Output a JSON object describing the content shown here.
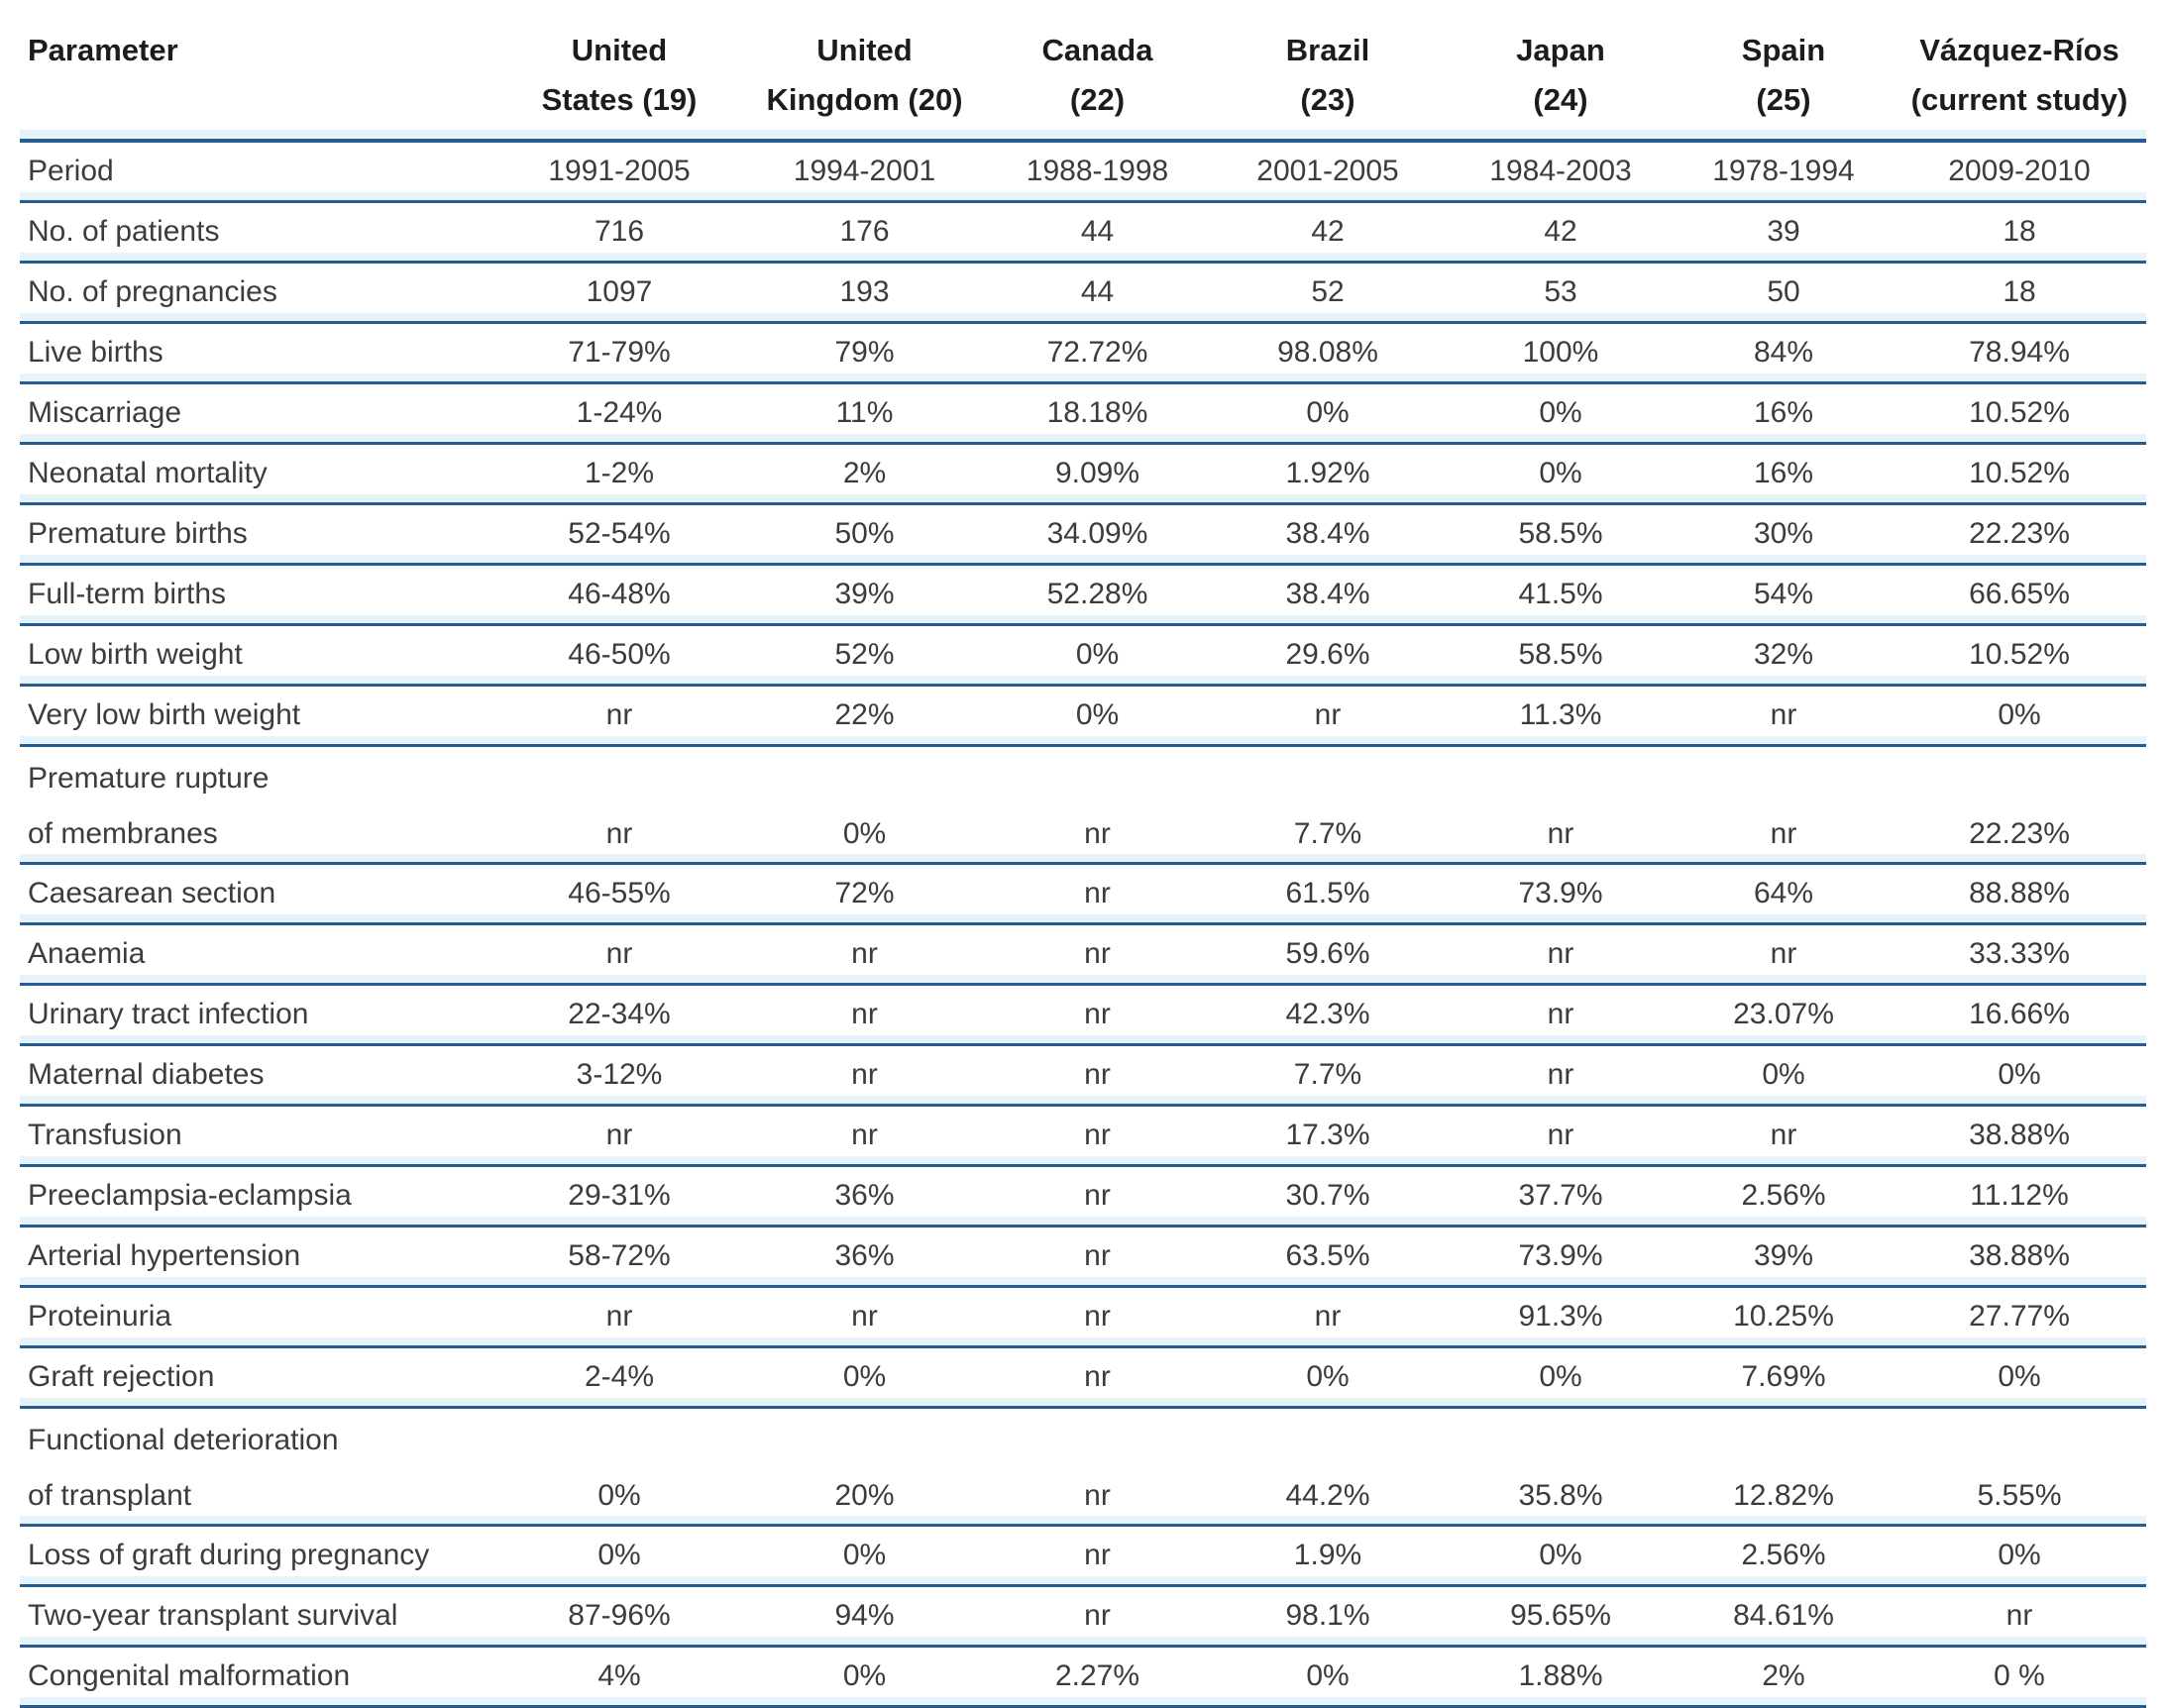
{
  "colors": {
    "rule_dark": "#275c93",
    "rule_light": "#e6f3fb",
    "header_text": "#1c1c1c",
    "body_text": "#3c3c3c"
  },
  "table": {
    "header": {
      "param_label": "Parameter",
      "columns": [
        {
          "line1": "United",
          "line2": "States (19)"
        },
        {
          "line1": "United",
          "line2": "Kingdom (20)"
        },
        {
          "line1": "Canada",
          "line2": "(22)"
        },
        {
          "line1": "Brazil",
          "line2": "(23)"
        },
        {
          "line1": "Japan",
          "line2": "(24)"
        },
        {
          "line1": "Spain",
          "line2": "(25)"
        },
        {
          "line1": "Vázquez-Ríos",
          "line2": "(current study)"
        }
      ]
    },
    "rows": [
      {
        "param_lines": [
          "Period"
        ],
        "values": [
          "1991-2005",
          "1994-2001",
          "1988-1998",
          "2001-2005",
          "1984-2003",
          "1978-1994",
          "2009-2010"
        ]
      },
      {
        "param_lines": [
          "No. of patients"
        ],
        "values": [
          "716",
          "176",
          "44",
          "42",
          "42",
          "39",
          "18"
        ]
      },
      {
        "param_lines": [
          "No. of pregnancies"
        ],
        "values": [
          "1097",
          "193",
          "44",
          "52",
          "53",
          "50",
          "18"
        ]
      },
      {
        "param_lines": [
          "Live births"
        ],
        "values": [
          "71-79%",
          "79%",
          "72.72%",
          "98.08%",
          "100%",
          "84%",
          "78.94%"
        ]
      },
      {
        "param_lines": [
          "Miscarriage"
        ],
        "values": [
          "1-24%",
          "11%",
          "18.18%",
          "0%",
          "0%",
          "16%",
          "10.52%"
        ]
      },
      {
        "param_lines": [
          "Neonatal mortality"
        ],
        "values": [
          "1-2%",
          "2%",
          "9.09%",
          "1.92%",
          "0%",
          "16%",
          "10.52%"
        ]
      },
      {
        "param_lines": [
          "Premature births"
        ],
        "values": [
          "52-54%",
          "50%",
          "34.09%",
          "38.4%",
          "58.5%",
          "30%",
          "22.23%"
        ]
      },
      {
        "param_lines": [
          "Full-term births"
        ],
        "values": [
          "46-48%",
          "39%",
          "52.28%",
          "38.4%",
          "41.5%",
          "54%",
          "66.65%"
        ]
      },
      {
        "param_lines": [
          "Low birth weight"
        ],
        "values": [
          "46-50%",
          "52%",
          "0%",
          "29.6%",
          "58.5%",
          "32%",
          "10.52%"
        ]
      },
      {
        "param_lines": [
          "Very low birth weight"
        ],
        "values": [
          "nr",
          "22%",
          "0%",
          "nr",
          "11.3%",
          "nr",
          "0%"
        ]
      },
      {
        "param_lines": [
          "Premature rupture",
          "of membranes"
        ],
        "values": [
          "nr",
          "0%",
          "nr",
          "7.7%",
          "nr",
          "nr",
          "22.23%"
        ]
      },
      {
        "param_lines": [
          "Caesarean section"
        ],
        "values": [
          "46-55%",
          "72%",
          "nr",
          "61.5%",
          "73.9%",
          "64%",
          "88.88%"
        ]
      },
      {
        "param_lines": [
          "Anaemia"
        ],
        "values": [
          "nr",
          "nr",
          "nr",
          "59.6%",
          "nr",
          "nr",
          "33.33%"
        ]
      },
      {
        "param_lines": [
          "Urinary tract infection"
        ],
        "values": [
          "22-34%",
          "nr",
          "nr",
          "42.3%",
          "nr",
          "23.07%",
          "16.66%"
        ]
      },
      {
        "param_lines": [
          "Maternal diabetes"
        ],
        "values": [
          "3-12%",
          "nr",
          "nr",
          "7.7%",
          "nr",
          "0%",
          "0%"
        ]
      },
      {
        "param_lines": [
          "Transfusion"
        ],
        "values": [
          "nr",
          "nr",
          "nr",
          "17.3%",
          "nr",
          "nr",
          "38.88%"
        ]
      },
      {
        "param_lines": [
          "Preeclampsia-eclampsia"
        ],
        "values": [
          "29-31%",
          "36%",
          "nr",
          "30.7%",
          "37.7%",
          "2.56%",
          "11.12%"
        ]
      },
      {
        "param_lines": [
          "Arterial hypertension"
        ],
        "values": [
          "58-72%",
          "36%",
          "nr",
          "63.5%",
          "73.9%",
          "39%",
          "38.88%"
        ]
      },
      {
        "param_lines": [
          "Proteinuria"
        ],
        "values": [
          "nr",
          "nr",
          "nr",
          "nr",
          "91.3%",
          "10.25%",
          "27.77%"
        ]
      },
      {
        "param_lines": [
          "Graft rejection"
        ],
        "values": [
          "2-4%",
          "0%",
          "nr",
          "0%",
          "0%",
          "7.69%",
          "0%"
        ]
      },
      {
        "param_lines": [
          "Functional deterioration",
          "of transplant"
        ],
        "values": [
          "0%",
          "20%",
          "nr",
          "44.2%",
          "35.8%",
          "12.82%",
          "5.55%"
        ]
      },
      {
        "param_lines": [
          "Loss of graft during pregnancy"
        ],
        "values": [
          "0%",
          "0%",
          "nr",
          "1.9%",
          "0%",
          "2.56%",
          "0%"
        ]
      },
      {
        "param_lines": [
          "Two-year transplant survival"
        ],
        "values": [
          "87-96%",
          "94%",
          "nr",
          "98.1%",
          "95.65%",
          "84.61%",
          "nr"
        ]
      },
      {
        "param_lines": [
          "Congenital malformation"
        ],
        "values": [
          "4%",
          "0%",
          "2.27%",
          "0%",
          "1.88%",
          "2%",
          "0 %"
        ]
      }
    ]
  }
}
